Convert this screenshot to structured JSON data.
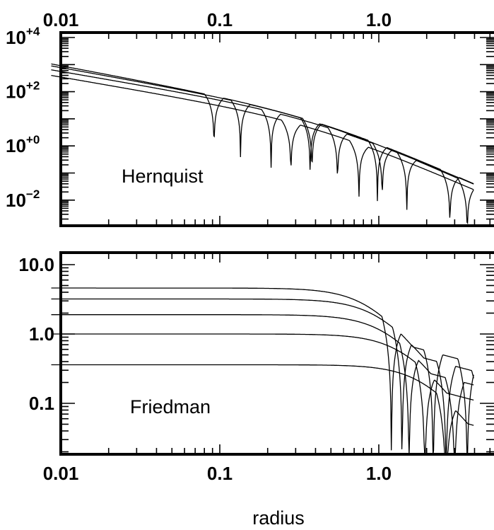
{
  "chart_data": [
    {
      "type": "line",
      "panel_label": "Hernquist",
      "xscale": "log",
      "yscale": "log",
      "xlim": [
        0.01,
        10
      ],
      "ylim": [
        0.0001,
        10000
      ],
      "x_tick_labels": [
        "0.01",
        "0.1",
        "1.0"
      ],
      "y_ticks": [
        {
          "value": 10000,
          "base": "10",
          "exp": "+4"
        },
        {
          "value": 100,
          "base": "10",
          "exp": "+2"
        },
        {
          "value": 1,
          "base": "10",
          "exp": "+0"
        },
        {
          "value": 0.01,
          "base": "10",
          "exp": "−2"
        }
      ],
      "series": [
        {
          "inner_slope": -1.0,
          "amplitude": 20,
          "zeros": [
            0.28,
            0.75
          ],
          "outer_level": 3.5
        },
        {
          "inner_slope": -1.0,
          "amplitude": 45,
          "zeros": [
            0.21,
            0.55,
            1.05
          ],
          "outer_level": 2.5
        },
        {
          "inner_slope": -1.05,
          "amplitude": 80,
          "zeros": [
            0.135,
            0.38,
            0.98,
            2.8
          ],
          "outer_level": 1.8
        },
        {
          "inner_slope": -1.1,
          "amplitude": 130,
          "zeros": [
            0.092,
            0.37,
            1.5,
            3.6
          ],
          "outer_level": 1.2
        }
      ]
    },
    {
      "type": "line",
      "panel_label": "Friedman",
      "xscale": "log",
      "yscale": "log",
      "xlim": [
        0.01,
        10
      ],
      "ylim": [
        0.02,
        15
      ],
      "x_tick_labels": [
        "0.01",
        "0.1",
        "1.0"
      ],
      "y_tick_labels": [
        {
          "value": 10,
          "label": "10.0"
        },
        {
          "value": 1,
          "label": "1.0"
        },
        {
          "value": 0.1,
          "label": "0.1"
        }
      ],
      "xlabel": "radius",
      "series": [
        {
          "plateau": 0.36,
          "zeros": [
            2.65
          ]
        },
        {
          "plateau": 1.0,
          "zeros": [
            1.95,
            4.6
          ]
        },
        {
          "plateau": 1.9,
          "zeros": [
            1.55,
            3.0
          ]
        },
        {
          "plateau": 3.2,
          "zeros": [
            1.4,
            2.65,
            4.4
          ]
        },
        {
          "plateau": 4.6,
          "zeros": [
            1.2,
            2.2,
            3.6
          ]
        }
      ]
    }
  ]
}
